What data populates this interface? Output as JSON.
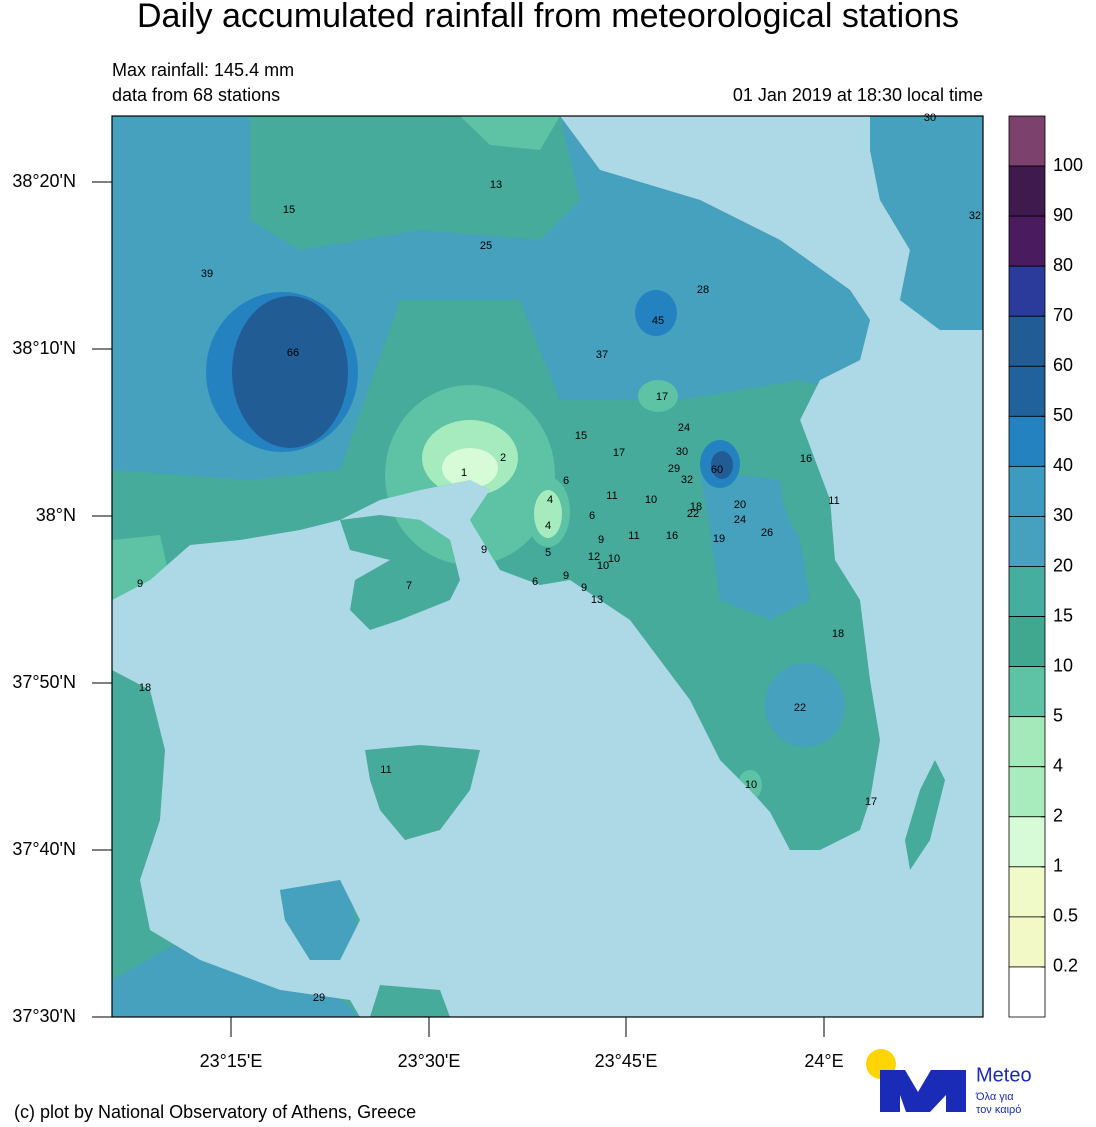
{
  "header": {
    "title": "Daily accumulated rainfall from meteorological stations",
    "max_rainfall": "Max rainfall: 145.4 mm",
    "stations_note": "data from 68 stations",
    "time": "01 Jan 2019 at 18:30 local time"
  },
  "axes": {
    "lat_labels": [
      "38°20'N",
      "38°10'N",
      "38°N",
      "37°50'N",
      "37°40'N",
      "37°30'N"
    ],
    "lon_labels": [
      "23°15'E",
      "23°30'E",
      "23°45'E",
      "24°E"
    ]
  },
  "colorbar": {
    "labels": [
      100,
      90,
      80,
      70,
      60,
      50,
      40,
      30,
      20,
      15,
      10,
      5,
      4,
      2,
      1,
      0.5,
      0.2
    ],
    "colors": [
      "#7d416e",
      "#3e1a4f",
      "#4a1b5e",
      "#2b3b9c",
      "#225c95",
      "#21629c",
      "#2482c0",
      "#3d9bc0",
      "#45a1be",
      "#45ae9f",
      "#3fa88f",
      "#5ec2a4",
      "#a3e9b9",
      "#a8ecbe",
      "#d6fbd6",
      "#f0fac8",
      "#f2f8c6",
      "#ffffff"
    ]
  },
  "stations": [
    30,
    32,
    13,
    15,
    25,
    39,
    28,
    45,
    66,
    37,
    17,
    15,
    24,
    17,
    30,
    2,
    29,
    60,
    1,
    32,
    6,
    11,
    4,
    10,
    18,
    22,
    20,
    11,
    16,
    6,
    24,
    4,
    11,
    16,
    19,
    26,
    9,
    9,
    5,
    12,
    10,
    10,
    6,
    9,
    9,
    13,
    9,
    7,
    18,
    18,
    22,
    11,
    10,
    17,
    29
  ],
  "footer": "(c) plot by National Observatory of Athens, Greece",
  "logo": {
    "name": "Meteo",
    "tagline_1": "Όλα για",
    "tagline_2": "τον καιρό"
  }
}
